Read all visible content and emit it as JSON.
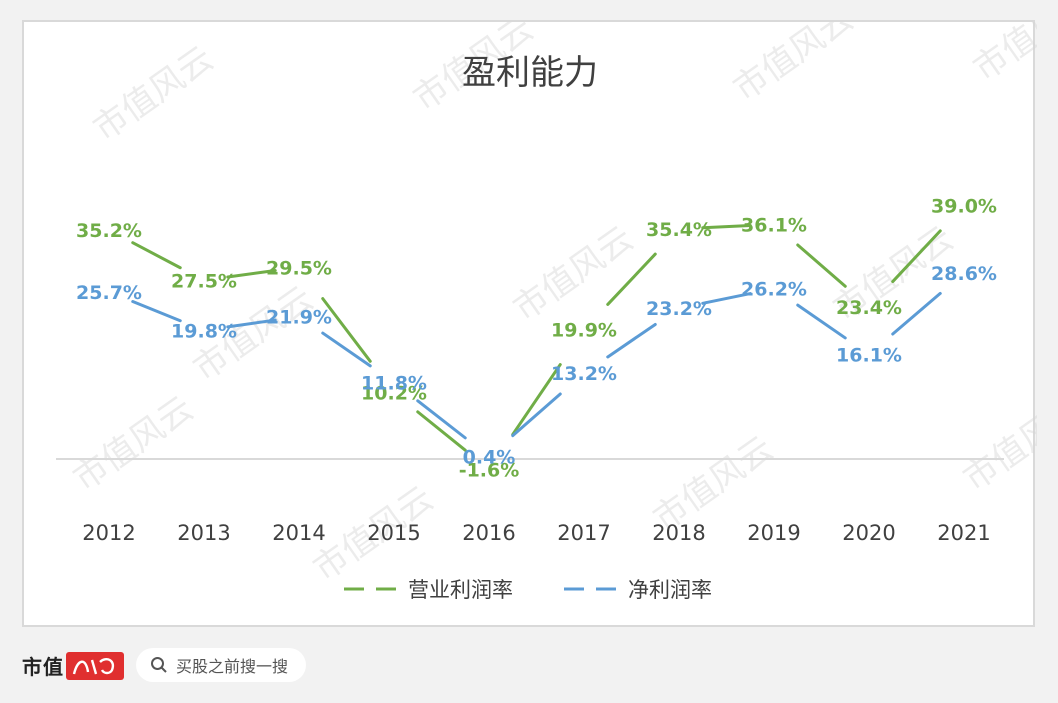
{
  "watermark_text": "市值风云",
  "footer": {
    "brand": "市值",
    "brand_seal_text": "风云",
    "search_placeholder": "买股之前搜一搜"
  },
  "colors": {
    "operating_margin": "#70ad47",
    "net_margin": "#5b9bd5",
    "axis": "#d9d9d9"
  },
  "chart_data": {
    "type": "line",
    "title": "盈利能力",
    "x": [
      "2012",
      "2013",
      "2014",
      "2015",
      "2016",
      "2017",
      "2018",
      "2019",
      "2020",
      "2021"
    ],
    "series": [
      {
        "name": "营业利润率",
        "values": [
          35.2,
          27.5,
          29.5,
          10.2,
          -1.6,
          19.9,
          35.4,
          36.1,
          23.4,
          39.0
        ],
        "labels": [
          "35.2%",
          "27.5%",
          "29.5%",
          "10.2%",
          "-1.6%",
          "19.9%",
          "35.4%",
          "36.1%",
          "23.4%",
          "39.0%"
        ],
        "line_style": "dashed-gaps"
      },
      {
        "name": "净利润率",
        "values": [
          25.7,
          19.8,
          21.9,
          11.8,
          0.4,
          13.2,
          23.2,
          26.2,
          16.1,
          28.6
        ],
        "labels": [
          "25.7%",
          "19.8%",
          "21.9%",
          "11.8%",
          "0.4%",
          "13.2%",
          "23.2%",
          "26.2%",
          "16.1%",
          "28.6%"
        ],
        "line_style": "dashed-gaps"
      }
    ],
    "ylim": [
      -5,
      45
    ],
    "grid": false,
    "legend_position": "bottom",
    "data_labels": true
  }
}
